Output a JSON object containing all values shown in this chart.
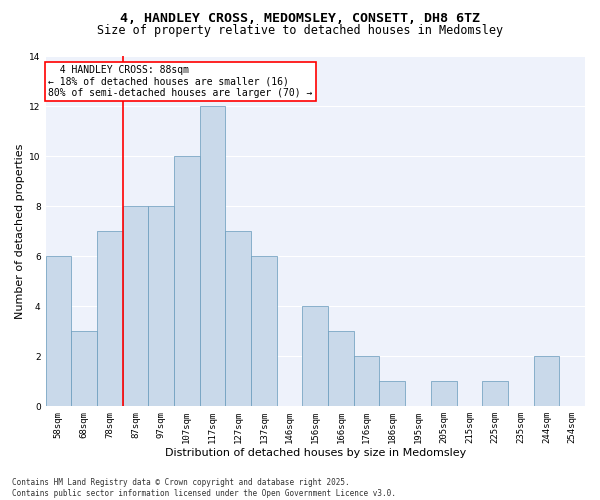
{
  "title1": "4, HANDLEY CROSS, MEDOMSLEY, CONSETT, DH8 6TZ",
  "title2": "Size of property relative to detached houses in Medomsley",
  "xlabel": "Distribution of detached houses by size in Medomsley",
  "ylabel": "Number of detached properties",
  "categories": [
    "58sqm",
    "68sqm",
    "78sqm",
    "87sqm",
    "97sqm",
    "107sqm",
    "117sqm",
    "127sqm",
    "137sqm",
    "146sqm",
    "156sqm",
    "166sqm",
    "176sqm",
    "186sqm",
    "195sqm",
    "205sqm",
    "215sqm",
    "225sqm",
    "235sqm",
    "244sqm",
    "254sqm"
  ],
  "values": [
    6,
    3,
    7,
    8,
    8,
    10,
    12,
    7,
    6,
    0,
    4,
    3,
    2,
    1,
    0,
    1,
    0,
    1,
    0,
    2,
    0
  ],
  "bar_color": "#c9d9ea",
  "bar_edge_color": "#6699bb",
  "red_line_x": 2.5,
  "annotation_text": "  4 HANDLEY CROSS: 88sqm  \n← 18% of detached houses are smaller (16)\n80% of semi-detached houses are larger (70) →",
  "annotation_box_color": "white",
  "annotation_box_edge": "red",
  "ylim": [
    0,
    14
  ],
  "yticks": [
    0,
    2,
    4,
    6,
    8,
    10,
    12,
    14
  ],
  "bg_color": "#eef2fb",
  "grid_color": "white",
  "footer": "Contains HM Land Registry data © Crown copyright and database right 2025.\nContains public sector information licensed under the Open Government Licence v3.0.",
  "title1_fontsize": 9.5,
  "title2_fontsize": 8.5,
  "xlabel_fontsize": 8,
  "ylabel_fontsize": 8,
  "tick_fontsize": 6.5,
  "annotation_fontsize": 7,
  "footer_fontsize": 5.5
}
